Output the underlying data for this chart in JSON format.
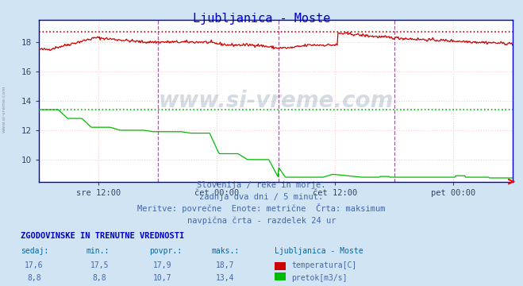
{
  "title": "Ljubljanica - Moste",
  "bg_color": "#d0e4f4",
  "plot_bg_color": "#ffffff",
  "grid_color": "#ffcccc",
  "x_labels": [
    "sre 12:00",
    "čet 00:00",
    "čet 12:00",
    "pet 00:00"
  ],
  "x_ticks_rel": [
    0.125,
    0.375,
    0.625,
    0.875
  ],
  "ylim": [
    8.5,
    19.5
  ],
  "yticks": [
    10,
    12,
    14,
    16,
    18
  ],
  "temp_color": "#cc0000",
  "flow_color": "#00bb00",
  "temp_max": 18.7,
  "flow_max": 13.4,
  "subtitle1": "Slovenija / reke in morje.",
  "subtitle2": "zadnja dva dni / 5 minut.",
  "subtitle3": "Meritve: povrečne  Enote: metrične  Črta: maksimum",
  "subtitle4": "navpična črta - razdelek 24 ur",
  "table_header": "ZGODOVINSKE IN TRENUTNE VREDNOSTI",
  "col_headers": [
    "sedaj:",
    "min.:",
    "povpr.:",
    "maks.:",
    "Ljubljanica - Moste"
  ],
  "row1": [
    "17,6",
    "17,5",
    "17,9",
    "18,7"
  ],
  "row2": [
    "8,8",
    "8,8",
    "10,7",
    "13,4"
  ],
  "row1_label": "temperatura[C]",
  "row2_label": "pretok[m3/s]",
  "watermark": "www.si-vreme.com",
  "vert_lines": [
    0.25,
    0.505,
    0.75
  ],
  "spine_color": "#0000cc",
  "tick_color": "#334466",
  "title_color": "#0000cc",
  "subtitle_color": "#4466aa",
  "table_header_color": "#0000cc",
  "col_header_color": "#0066aa",
  "data_color": "#4466aa"
}
